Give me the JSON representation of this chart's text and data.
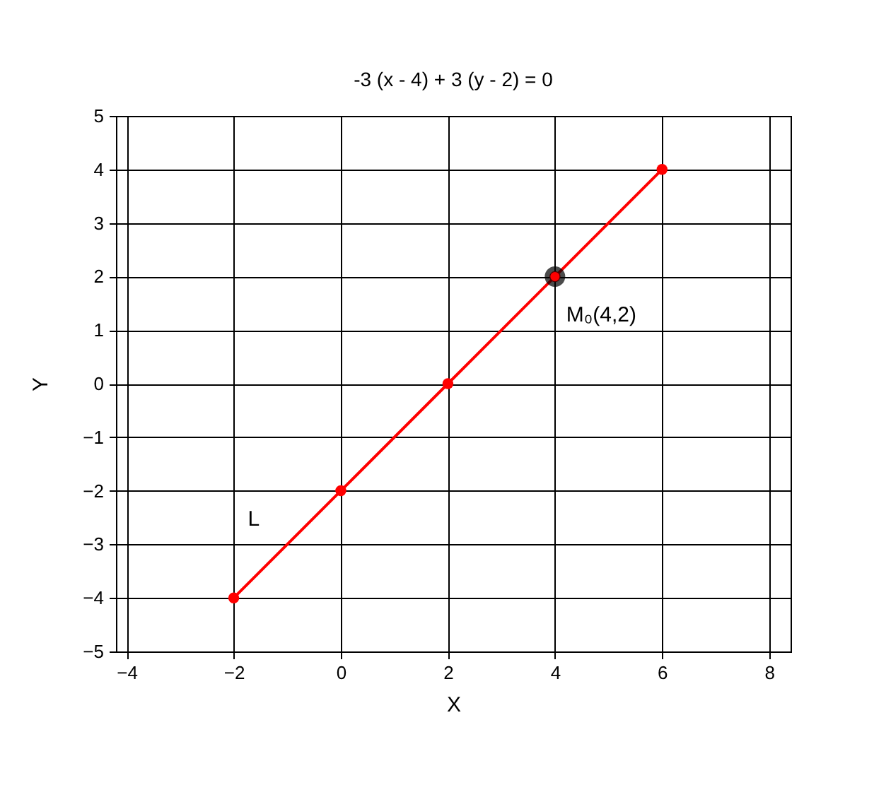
{
  "chart_data": {
    "type": "line",
    "title": "-3 (x - 4) + 3 (y - 2) = 0",
    "xlabel": "X",
    "ylabel": "Y",
    "xlim": [
      -4.2,
      8.4
    ],
    "xticks": [
      -4,
      -2,
      0,
      2,
      4,
      6,
      8
    ],
    "ylim": [
      -5,
      5
    ],
    "yticks": [
      -5,
      -4,
      -3,
      -2,
      -1,
      0,
      1,
      2,
      3,
      4,
      5
    ],
    "grid": true,
    "marker": "circle",
    "line_style": "solid",
    "series": [
      {
        "name": "L",
        "color": "#ff0000",
        "x": [
          -2,
          0,
          2,
          4,
          6
        ],
        "values": [
          -4,
          -2,
          0,
          2,
          4
        ]
      },
      {
        "type": "scatter",
        "color": "#000000",
        "x": [
          4
        ],
        "values": [
          2
        ]
      }
    ],
    "annotations": [
      {
        "text": "M₀(4,2)",
        "x": 4,
        "y": 2
      }
    ]
  }
}
